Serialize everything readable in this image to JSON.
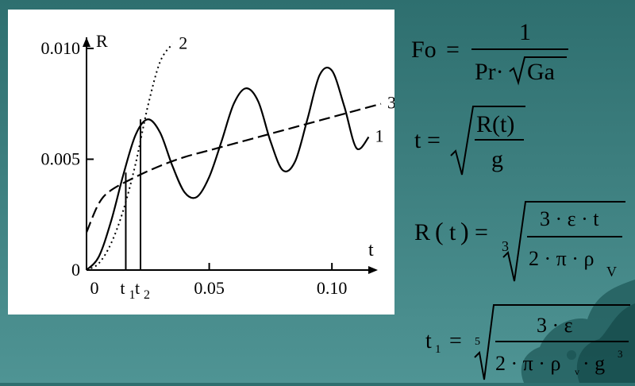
{
  "chart_data": {
    "type": "line",
    "title": "",
    "xlabel": "t",
    "ylabel": "R",
    "xlim": [
      0,
      0.12
    ],
    "ylim": [
      0,
      0.0105
    ],
    "x_ticks": [
      {
        "value": 0.05,
        "label": "0.05"
      },
      {
        "value": 0.1,
        "label": "0.10"
      }
    ],
    "y_ticks": [
      {
        "value": 0,
        "label": "0"
      },
      {
        "value": 0.005,
        "label": "0.005"
      },
      {
        "value": 0.01,
        "label": "0.010"
      }
    ],
    "origin_x_label": "0",
    "grid": false,
    "legend": "none",
    "series": [
      {
        "name": "1",
        "style": "solid",
        "x": [
          0,
          0.005,
          0.01,
          0.015,
          0.02,
          0.025,
          0.03,
          0.035,
          0.04,
          0.045,
          0.05,
          0.055,
          0.06,
          0.065,
          0.07,
          0.075,
          0.08,
          0.085,
          0.09,
          0.095,
          0.1,
          0.105,
          0.11,
          0.115
        ],
        "y": [
          0,
          0.0006,
          0.0022,
          0.0043,
          0.0061,
          0.0068,
          0.0062,
          0.0047,
          0.0035,
          0.0033,
          0.0042,
          0.0058,
          0.0075,
          0.0082,
          0.0076,
          0.0058,
          0.0045,
          0.0049,
          0.0068,
          0.0088,
          0.009,
          0.0074,
          0.0055,
          0.006
        ]
      },
      {
        "name": "2",
        "style": "dotted",
        "x": [
          0,
          0.005,
          0.01,
          0.015,
          0.02,
          0.025,
          0.03,
          0.035
        ],
        "y": [
          0,
          0.0003,
          0.0012,
          0.0027,
          0.0048,
          0.0074,
          0.0094,
          0.0102
        ]
      },
      {
        "name": "3",
        "style": "dash-dot",
        "x": [
          0,
          0.005,
          0.01,
          0.02,
          0.03,
          0.04,
          0.05,
          0.06,
          0.07,
          0.08,
          0.09,
          0.1,
          0.11,
          0.12
        ],
        "y": [
          0.0017,
          0.003,
          0.0036,
          0.0042,
          0.0047,
          0.0051,
          0.0054,
          0.0057,
          0.006,
          0.0063,
          0.0066,
          0.0069,
          0.0072,
          0.0075
        ]
      }
    ],
    "markers": [
      {
        "label": "t",
        "sub": "1",
        "x": 0.016,
        "y_top": 0.0044
      },
      {
        "label": "t",
        "sub": "2",
        "x": 0.022,
        "y_top": 0.0068
      }
    ]
  },
  "formulas": {
    "fo": {
      "lhs": "Fo",
      "eq": "=",
      "num": "1",
      "den_a": "Pr·",
      "den_b": "Ga"
    },
    "t": {
      "lhs": "t",
      "eq": "=",
      "num": "R(t)",
      "den": "g"
    },
    "rt": {
      "lhs": "R",
      "arg": "t",
      "eq": "=",
      "root_index": "3",
      "num": "3 · ε · t",
      "den": "2 · π · ρ",
      "den_sub": "V"
    },
    "t1": {
      "lhs": "t",
      "lhs_sub": "1",
      "eq": "=",
      "root_index": "5",
      "num": "3 · ε",
      "den": "2 · π · ρ",
      "den_sub": "v",
      "den_tail": "· g",
      "den_sup": "3"
    }
  },
  "colors": {
    "background": "#3d7f7f",
    "chart_background": "#ffffff",
    "ink": "#000000"
  }
}
